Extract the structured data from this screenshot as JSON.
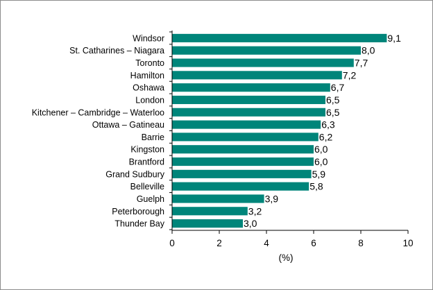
{
  "chart_data": {
    "type": "bar",
    "orientation": "horizontal",
    "categories": [
      "Windsor",
      "St. Catharines – Niagara",
      "Toronto",
      "Hamilton",
      "Oshawa",
      "London",
      "Kitchener – Cambridge – Waterloo",
      "Ottawa – Gatineau",
      "Barrie",
      "Kingston",
      "Brantford",
      "Grand Sudbury",
      "Belleville",
      "Guelph",
      "Peterborough",
      "Thunder Bay"
    ],
    "values": [
      9.1,
      8.0,
      7.7,
      7.2,
      6.7,
      6.5,
      6.5,
      6.3,
      6.2,
      6.0,
      6.0,
      5.9,
      5.8,
      3.9,
      3.2,
      3.0
    ],
    "value_labels": [
      "9,1",
      "8,0",
      "7,7",
      "7,2",
      "6,7",
      "6,5",
      "6,5",
      "6,3",
      "6,2",
      "6,0",
      "6,0",
      "5,9",
      "5,8",
      "3,9",
      "3,2",
      "3,0"
    ],
    "xlim": [
      0,
      10
    ],
    "xticks": [
      0,
      2,
      4,
      6,
      8,
      10
    ],
    "xtick_labels": [
      "0",
      "2",
      "4",
      "6",
      "8",
      "10"
    ],
    "xlabel": "(%)",
    "title": "",
    "grid": false,
    "legend": "none",
    "bar_color": "#00857a"
  }
}
